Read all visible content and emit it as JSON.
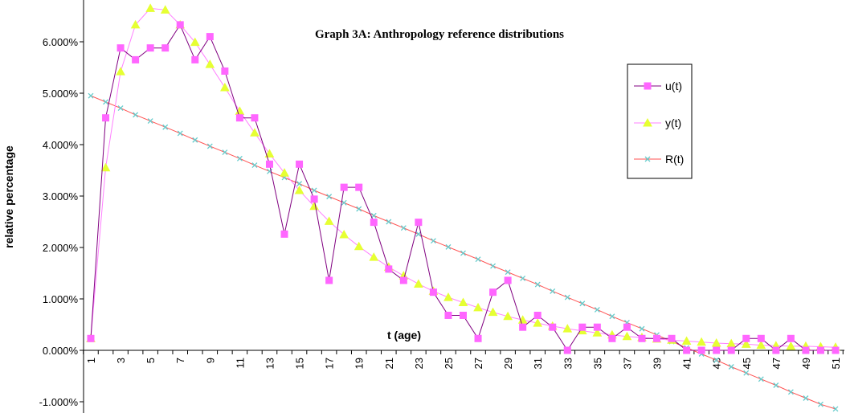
{
  "chart_data": {
    "type": "line",
    "title": "Graph 3A: Anthropology reference distributions",
    "xlabel": "t (age)",
    "ylabel": "relative percentage",
    "x": [
      1,
      2,
      3,
      4,
      5,
      6,
      7,
      8,
      9,
      10,
      11,
      12,
      13,
      14,
      15,
      16,
      17,
      18,
      19,
      20,
      21,
      22,
      23,
      24,
      25,
      26,
      27,
      28,
      29,
      30,
      31,
      32,
      33,
      34,
      35,
      36,
      37,
      38,
      39,
      40,
      41,
      42,
      43,
      44,
      45,
      46,
      47,
      48,
      49,
      50,
      51
    ],
    "x_tick_labels": [
      "1",
      "3",
      "5",
      "7",
      "9",
      "11",
      "13",
      "15",
      "17",
      "19",
      "21",
      "23",
      "25",
      "27",
      "29",
      "31",
      "33",
      "35",
      "37",
      "39",
      "41",
      "43",
      "45",
      "47",
      "49",
      "51"
    ],
    "y_tick_labels": [
      "-1.000%",
      "0.000%",
      "1.000%",
      "2.000%",
      "3.000%",
      "4.000%",
      "5.000%",
      "6.000%"
    ],
    "ylim": [
      -1.0,
      6.6
    ],
    "y_unit": "%",
    "legend_position": "right",
    "series": [
      {
        "name": "u(t)",
        "color": "#800080",
        "marker_color": "#ff66ff",
        "marker": "square",
        "values": [
          0.23,
          4.52,
          5.88,
          5.65,
          5.88,
          5.88,
          6.33,
          5.65,
          6.1,
          5.43,
          4.52,
          4.52,
          3.62,
          2.26,
          3.62,
          2.94,
          1.36,
          3.17,
          3.17,
          2.49,
          1.58,
          1.36,
          2.49,
          1.13,
          0.68,
          0.68,
          0.23,
          1.13,
          1.36,
          0.45,
          0.68,
          0.45,
          0.0,
          0.45,
          0.45,
          0.23,
          0.45,
          0.23,
          0.23,
          0.23,
          0.0,
          0.0,
          0.0,
          0.0,
          0.23,
          0.23,
          0.0,
          0.23,
          0.0,
          0.0,
          0.0
        ]
      },
      {
        "name": "y(t)",
        "color": "#ff80ff",
        "marker_color": "#e6ff33",
        "marker": "triangle",
        "values": [
          0.23,
          3.55,
          5.42,
          6.33,
          6.65,
          6.62,
          6.33,
          5.99,
          5.56,
          5.11,
          4.65,
          4.23,
          3.82,
          3.45,
          3.11,
          2.8,
          2.51,
          2.25,
          2.02,
          1.81,
          1.62,
          1.45,
          1.29,
          1.15,
          1.03,
          0.93,
          0.83,
          0.74,
          0.66,
          0.59,
          0.53,
          0.47,
          0.42,
          0.38,
          0.34,
          0.3,
          0.27,
          0.25,
          0.22,
          0.2,
          0.18,
          0.16,
          0.14,
          0.13,
          0.12,
          0.1,
          0.09,
          0.08,
          0.08,
          0.07,
          0.06
        ]
      },
      {
        "name": "R(t)",
        "color": "#ff5050",
        "marker_color": "#66cccc",
        "marker": "x",
        "values": [
          4.95,
          4.83,
          4.71,
          4.58,
          4.46,
          4.34,
          4.22,
          4.09,
          3.97,
          3.85,
          3.73,
          3.6,
          3.48,
          3.36,
          3.24,
          3.11,
          2.99,
          2.87,
          2.75,
          2.62,
          2.5,
          2.38,
          2.26,
          2.13,
          2.01,
          1.89,
          1.77,
          1.64,
          1.52,
          1.4,
          1.28,
          1.15,
          1.03,
          0.91,
          0.79,
          0.66,
          0.54,
          0.42,
          0.3,
          0.17,
          0.05,
          -0.07,
          -0.19,
          -0.32,
          -0.44,
          -0.56,
          -0.68,
          -0.81,
          -0.93,
          -1.05,
          -1.14
        ]
      }
    ]
  }
}
